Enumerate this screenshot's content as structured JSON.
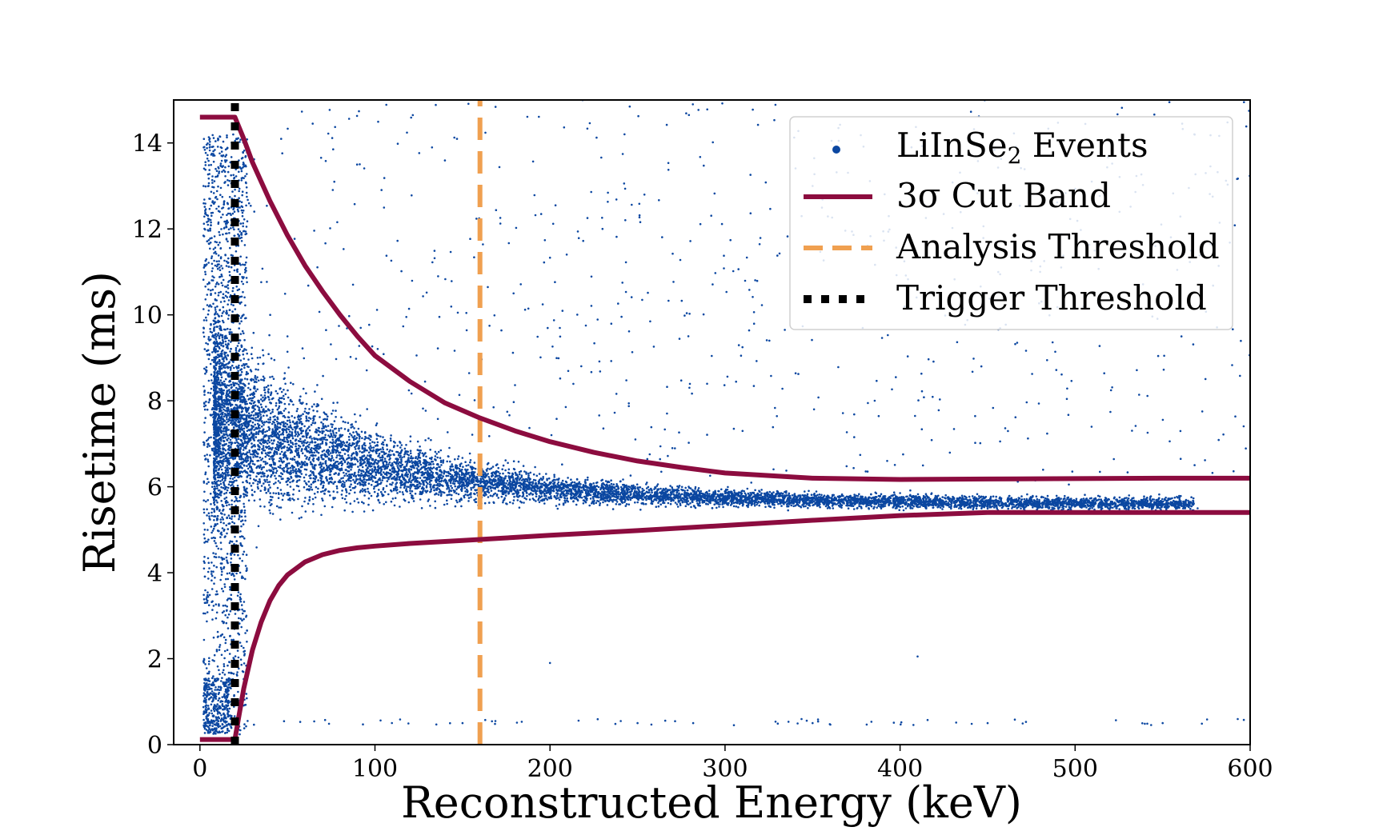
{
  "chart_data": {
    "type": "scatter",
    "title": "",
    "xlabel": "Reconstructed Energy (keV)",
    "ylabel": "Risetime (ms)",
    "xlim": [
      -15,
      600
    ],
    "ylim": [
      0,
      15
    ],
    "xticks": [
      0,
      100,
      200,
      300,
      400,
      500,
      600
    ],
    "yticks": [
      0,
      2,
      4,
      6,
      8,
      10,
      12,
      14
    ],
    "grid": false,
    "legend_position": "top-right",
    "colors": {
      "events": "#0b47a1",
      "cut_band": "#8c0c3f",
      "analysis_threshold": "#f0a050",
      "trigger_threshold": "#000000"
    },
    "legend": [
      {
        "key": "events",
        "label": "LiInSe",
        "sub": "2",
        "suffix": " Events"
      },
      {
        "key": "cut_band",
        "label": "3σ Cut Band"
      },
      {
        "key": "analysis_threshold",
        "label": "Analysis Threshold"
      },
      {
        "key": "trigger_threshold",
        "label": "Trigger Threshold"
      }
    ],
    "series": [
      {
        "name": "3σ Cut Band (upper)",
        "x": [
          0,
          20,
          25,
          30,
          40,
          50,
          60,
          70,
          80,
          90,
          100,
          120,
          140,
          160,
          180,
          200,
          225,
          250,
          275,
          300,
          350,
          400,
          450,
          500,
          550,
          600
        ],
        "y": [
          14.6,
          14.6,
          14.1,
          13.55,
          12.65,
          11.85,
          11.15,
          10.55,
          10.0,
          9.5,
          9.05,
          8.45,
          7.95,
          7.6,
          7.3,
          7.05,
          6.8,
          6.6,
          6.45,
          6.32,
          6.2,
          6.17,
          6.18,
          6.19,
          6.2,
          6.2
        ]
      },
      {
        "name": "3σ Cut Band (lower)",
        "x": [
          0,
          20,
          22,
          25,
          30,
          35,
          40,
          45,
          50,
          60,
          70,
          80,
          90,
          100,
          120,
          150,
          200,
          250,
          300,
          350,
          400,
          450,
          500,
          550,
          600
        ],
        "y": [
          0.12,
          0.12,
          0.6,
          1.3,
          2.2,
          2.85,
          3.35,
          3.7,
          3.95,
          4.25,
          4.42,
          4.52,
          4.58,
          4.62,
          4.68,
          4.75,
          4.87,
          4.98,
          5.1,
          5.22,
          5.33,
          5.4,
          5.4,
          5.4,
          5.4
        ]
      },
      {
        "name": "Analysis Threshold",
        "x": [
          160,
          160
        ],
        "y": [
          0,
          15
        ]
      },
      {
        "name": "Trigger Threshold",
        "x": [
          20,
          20
        ],
        "y": [
          0,
          15
        ]
      }
    ],
    "events": {
      "name": "LiInSe2 Events",
      "description_of_density": "dense band centered ~6 ms, broad spread to ~14 ms below 150 keV, narrowing toward ~5.7 ms by 450 keV; sparse background across plot; cluster near 0.5 ms",
      "samples": [
        [
          5,
          0.5
        ],
        [
          8,
          1.2
        ],
        [
          10,
          3.5
        ],
        [
          12,
          5.8
        ],
        [
          15,
          9.0
        ],
        [
          18,
          12.5
        ],
        [
          30,
          8.0
        ],
        [
          40,
          7.5
        ],
        [
          50,
          9.5
        ],
        [
          60,
          6.5
        ],
        [
          80,
          7.2
        ],
        [
          100,
          6.4
        ],
        [
          130,
          6.2
        ],
        [
          160,
          6.0
        ],
        [
          200,
          5.9
        ],
        [
          250,
          5.8
        ],
        [
          300,
          5.75
        ],
        [
          350,
          5.7
        ],
        [
          400,
          5.65
        ],
        [
          450,
          5.6
        ],
        [
          480,
          5.55
        ],
        [
          520,
          5.5
        ],
        [
          570,
          5.5
        ],
        [
          230,
          12.0
        ],
        [
          350,
          13.0
        ],
        [
          480,
          11.0
        ],
        [
          410,
          2.05
        ],
        [
          200,
          1.9
        ],
        [
          150,
          0.5
        ],
        [
          250,
          0.5
        ],
        [
          350,
          0.5
        ],
        [
          450,
          0.5
        ],
        [
          550,
          0.5
        ]
      ]
    }
  }
}
